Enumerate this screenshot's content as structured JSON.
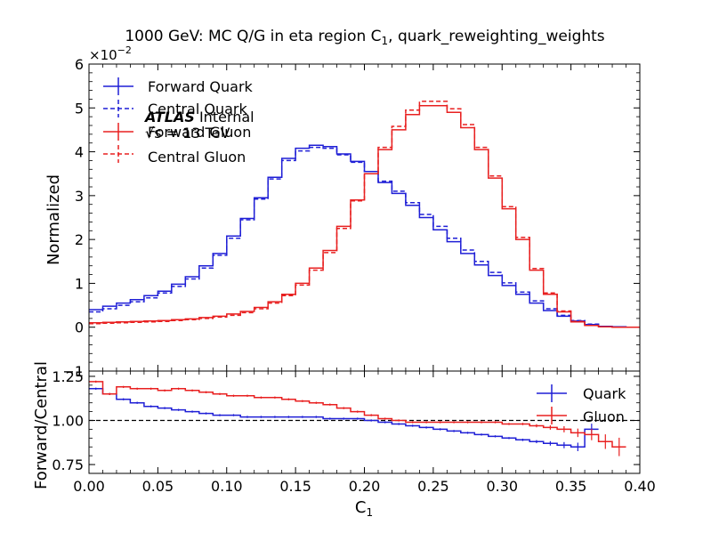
{
  "chart_data": [
    {
      "panel": "main",
      "type": "line",
      "title_main": "1000 GeV: MC Q/G in eta region C",
      "title_sub": "1",
      "title_tail": ", quark_reweighting_weights",
      "ylabel": "Normalized",
      "exponent_base": "×10",
      "exponent_power": "−2",
      "ylim": [
        -1,
        6
      ],
      "xlim": [
        0.0,
        0.4
      ],
      "yticks": [
        "−1",
        "0",
        "1",
        "2",
        "3",
        "4",
        "5",
        "6"
      ],
      "atlas_bold": "ATLAS",
      "atlas_rest": " Internal",
      "energy": "√s = 13 TeV",
      "legend_position": "upper-left",
      "x": [
        0.0,
        0.01,
        0.02,
        0.03,
        0.04,
        0.05,
        0.06,
        0.07,
        0.08,
        0.09,
        0.1,
        0.11,
        0.12,
        0.13,
        0.14,
        0.15,
        0.16,
        0.17,
        0.18,
        0.19,
        0.2,
        0.21,
        0.22,
        0.23,
        0.24,
        0.25,
        0.26,
        0.27,
        0.28,
        0.29,
        0.3,
        0.31,
        0.32,
        0.33,
        0.34,
        0.35,
        0.36,
        0.37,
        0.38,
        0.39,
        0.4
      ],
      "series": [
        {
          "name": "Forward Quark",
          "color": "#1f1fd6",
          "dash": false,
          "values": [
            0.4,
            0.48,
            0.55,
            0.63,
            0.72,
            0.82,
            0.98,
            1.15,
            1.4,
            1.68,
            2.08,
            2.48,
            2.95,
            3.42,
            3.85,
            4.08,
            4.15,
            4.12,
            3.95,
            3.78,
            3.55,
            3.3,
            3.05,
            2.78,
            2.5,
            2.22,
            1.95,
            1.68,
            1.42,
            1.18,
            0.95,
            0.75,
            0.55,
            0.38,
            0.25,
            0.14,
            0.06,
            0.02,
            0.01,
            0.0,
            0.0
          ]
        },
        {
          "name": "Central Quark",
          "color": "#1f1fd6",
          "dash": true,
          "values": [
            0.35,
            0.42,
            0.5,
            0.58,
            0.67,
            0.78,
            0.93,
            1.1,
            1.35,
            1.64,
            2.03,
            2.45,
            2.92,
            3.38,
            3.8,
            4.02,
            4.1,
            4.08,
            3.93,
            3.76,
            3.55,
            3.33,
            3.1,
            2.84,
            2.57,
            2.3,
            2.03,
            1.76,
            1.5,
            1.25,
            1.01,
            0.8,
            0.6,
            0.42,
            0.27,
            0.15,
            0.07,
            0.02,
            0.01,
            0.0,
            0.0
          ]
        },
        {
          "name": "Forward Gluon",
          "color": "#e82020",
          "dash": false,
          "values": [
            0.1,
            0.11,
            0.12,
            0.13,
            0.14,
            0.15,
            0.17,
            0.19,
            0.22,
            0.25,
            0.3,
            0.36,
            0.45,
            0.58,
            0.75,
            1.0,
            1.35,
            1.75,
            2.3,
            2.9,
            3.5,
            4.05,
            4.5,
            4.85,
            5.05,
            5.05,
            4.9,
            4.55,
            4.05,
            3.4,
            2.7,
            2.0,
            1.3,
            0.75,
            0.35,
            0.12,
            0.04,
            0.01,
            0.0,
            0.0,
            0.0
          ]
        },
        {
          "name": "Central Gluon",
          "color": "#e82020",
          "dash": true,
          "values": [
            0.08,
            0.09,
            0.1,
            0.11,
            0.12,
            0.13,
            0.15,
            0.17,
            0.2,
            0.23,
            0.27,
            0.33,
            0.42,
            0.55,
            0.72,
            0.96,
            1.3,
            1.7,
            2.25,
            2.88,
            3.5,
            4.1,
            4.58,
            4.95,
            5.15,
            5.15,
            4.98,
            4.62,
            4.1,
            3.45,
            2.75,
            2.05,
            1.34,
            0.78,
            0.37,
            0.13,
            0.04,
            0.01,
            0.0,
            0.0,
            0.0
          ]
        }
      ]
    },
    {
      "panel": "ratio",
      "type": "line",
      "xlabel_main": "C",
      "xlabel_sub": "1",
      "ylabel": "Forward/Central",
      "ylim": [
        0.7,
        1.28
      ],
      "yticks": [
        "0.75",
        "1.00",
        "1.25"
      ],
      "xticks": [
        "0.00",
        "0.05",
        "0.10",
        "0.15",
        "0.20",
        "0.25",
        "0.30",
        "0.35",
        "0.40"
      ],
      "reference_line": 1.0,
      "legend_position": "upper-right",
      "x": [
        0.0,
        0.01,
        0.02,
        0.03,
        0.04,
        0.05,
        0.06,
        0.07,
        0.08,
        0.09,
        0.1,
        0.11,
        0.12,
        0.13,
        0.14,
        0.15,
        0.16,
        0.17,
        0.18,
        0.19,
        0.2,
        0.21,
        0.22,
        0.23,
        0.24,
        0.25,
        0.26,
        0.27,
        0.28,
        0.29,
        0.3,
        0.31,
        0.32,
        0.33,
        0.34,
        0.35,
        0.36,
        0.37,
        0.38,
        0.39,
        0.4
      ],
      "series": [
        {
          "name": "Quark",
          "color": "#1f1fd6",
          "values": [
            1.18,
            1.15,
            1.12,
            1.1,
            1.08,
            1.07,
            1.06,
            1.05,
            1.04,
            1.03,
            1.03,
            1.02,
            1.02,
            1.02,
            1.02,
            1.02,
            1.02,
            1.01,
            1.01,
            1.01,
            1.0,
            0.99,
            0.98,
            0.97,
            0.96,
            0.95,
            0.94,
            0.93,
            0.92,
            0.91,
            0.9,
            0.89,
            0.88,
            0.87,
            0.86,
            0.85,
            0.95,
            null,
            null,
            null,
            null
          ]
        },
        {
          "name": "Gluon",
          "color": "#e82020",
          "values": [
            1.22,
            1.15,
            1.19,
            1.18,
            1.18,
            1.17,
            1.18,
            1.17,
            1.16,
            1.15,
            1.14,
            1.14,
            1.13,
            1.13,
            1.12,
            1.11,
            1.1,
            1.09,
            1.07,
            1.05,
            1.03,
            1.01,
            1.0,
            0.99,
            0.99,
            0.99,
            0.99,
            0.99,
            0.99,
            0.99,
            0.98,
            0.98,
            0.97,
            0.96,
            0.95,
            0.93,
            0.92,
            0.88,
            0.85,
            null,
            null
          ]
        }
      ]
    }
  ]
}
